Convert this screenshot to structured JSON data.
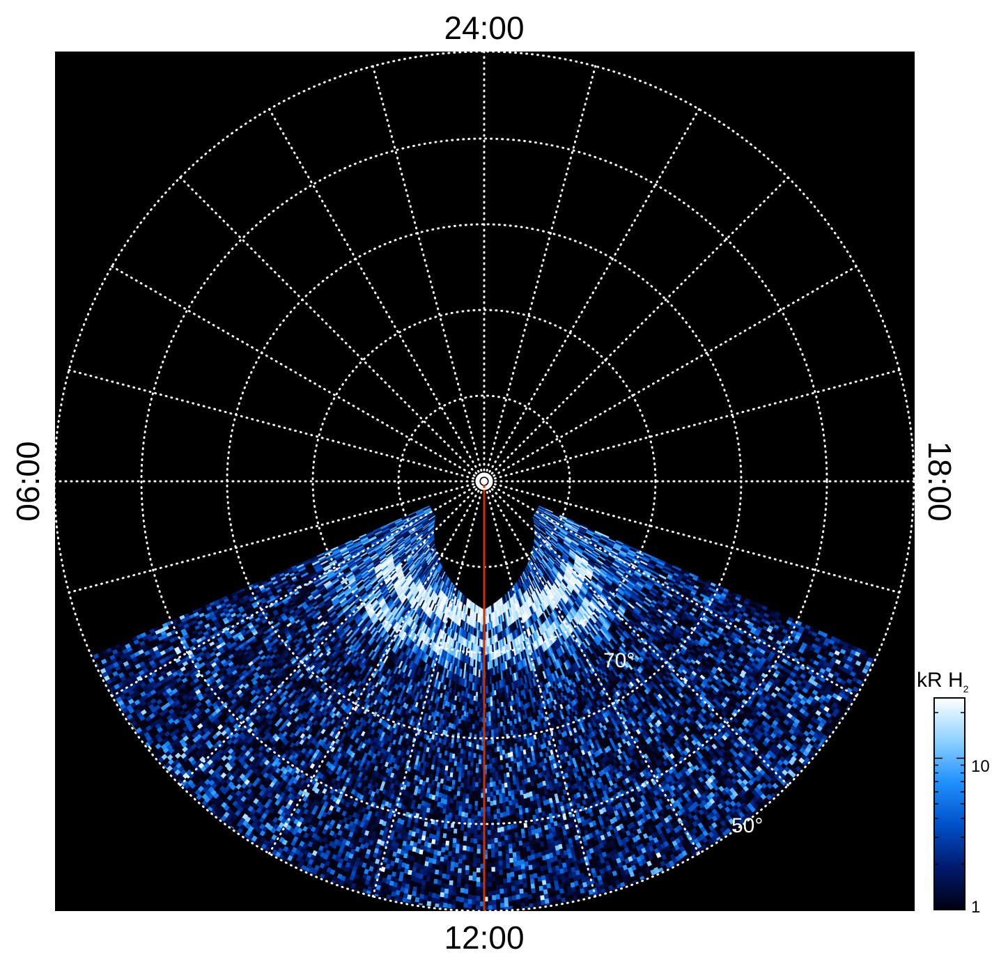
{
  "chart_data": {
    "type": "heatmap",
    "projection": "polar",
    "title": "",
    "local_time_labels": {
      "top": "24:00",
      "bottom": "12:00",
      "left": "06:00",
      "right": "18:00"
    },
    "latitude_labels": [
      "70°",
      "50°"
    ],
    "latitude_circles_deg": [
      90,
      80,
      70,
      60,
      50,
      40
    ],
    "meridian_spacing_hours": 1,
    "grid": true,
    "grid_style": "dotted white",
    "background_color": "#000000",
    "highlighted_meridian": {
      "local_time": "12:00",
      "color": "#cc3300"
    },
    "data_coverage": "dayside only (roughly 07:30 through 12:00 to 16:30 local time)",
    "features": [
      {
        "description": "bright main auroral oval",
        "local_time_range": [
          "08:30",
          "15:30"
        ],
        "approx_latitude_deg": [
          74,
          76
        ],
        "intensity_kR": 20
      },
      {
        "description": "second bright arc",
        "local_time_range": [
          "09:00",
          "15:00"
        ],
        "approx_latitude_deg": [
          70,
          72
        ],
        "intensity_kR": 15
      },
      {
        "description": "noisy background emission",
        "latitude_range_deg": [
          40,
          68
        ],
        "intensity_kR": [
          1,
          20
        ]
      }
    ],
    "colorbar": {
      "title": "kR H",
      "title_subscript": "2",
      "scale": "log",
      "range": [
        1,
        25
      ],
      "tick_labels": [
        "10",
        "1"
      ],
      "tick_values": [
        10,
        1
      ],
      "colormap": [
        "#000011",
        "#001a6e",
        "#0050c8",
        "#1e90ff",
        "#8fd2ff",
        "#ffffff"
      ]
    }
  }
}
